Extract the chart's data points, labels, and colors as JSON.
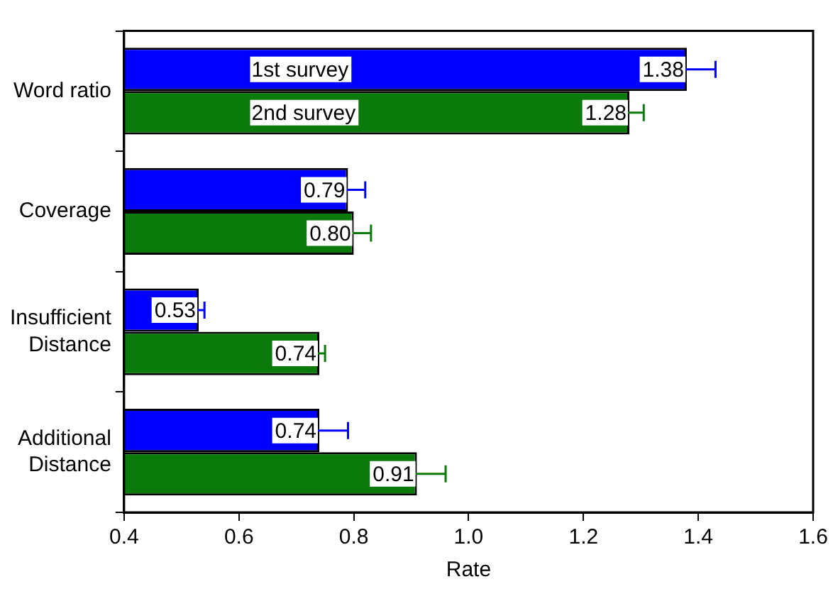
{
  "chart_data": {
    "type": "bar",
    "orientation": "horizontal",
    "xlabel": "Rate",
    "categories": [
      "Word ratio",
      "Coverage",
      "Insufficient Distance",
      "Additional Distance"
    ],
    "series": [
      {
        "name": "1st survey",
        "color": "#0000ff",
        "values": [
          1.38,
          0.79,
          0.53,
          0.74
        ],
        "errors": [
          0.05,
          0.03,
          0.01,
          0.05
        ],
        "value_labels": [
          "1.38",
          "0.79",
          "0.53",
          "0.74"
        ]
      },
      {
        "name": "2nd survey",
        "color": "#0a7a0a",
        "values": [
          1.28,
          0.8,
          0.74,
          0.91
        ],
        "errors": [
          0.025,
          0.03,
          0.01,
          0.05
        ],
        "value_labels": [
          "1.28",
          "0.80",
          "0.74",
          "0.91"
        ]
      }
    ],
    "xlim": [
      0.4,
      1.6
    ],
    "xticks": [
      0.4,
      0.6,
      0.8,
      {
        "value": 1.0,
        "label": "1.0"
      },
      1.2,
      1.4,
      1.6
    ],
    "grid": false,
    "legend": "top left"
  }
}
